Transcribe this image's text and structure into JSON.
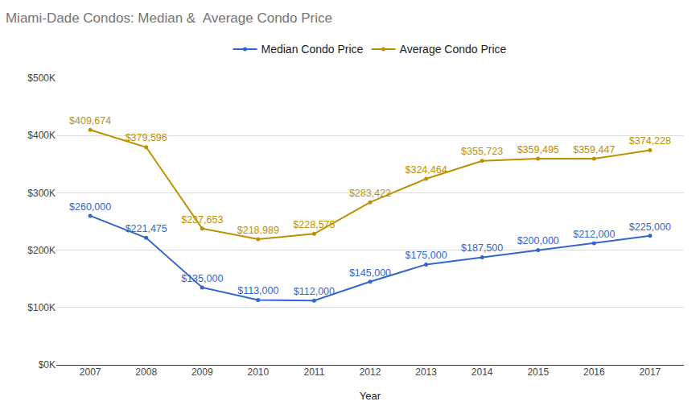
{
  "chart_data": {
    "type": "line",
    "title": "Miami-Dade Condos: Median &  Average Condo Price",
    "x_label": "Year",
    "categories": [
      "2007",
      "2008",
      "2009",
      "2010",
      "2011",
      "2012",
      "2013",
      "2014",
      "2015",
      "2016",
      "2017"
    ],
    "series": [
      {
        "name": "Median Condo Price",
        "color": "#3366cc",
        "marker": "circle",
        "line_style": "solid",
        "values": [
          260000,
          221475,
          135000,
          113000,
          112000,
          145000,
          175000,
          187500,
          200000,
          212000,
          225000
        ],
        "value_labels": [
          "$260,000",
          "$221,475",
          "$135,000",
          "$113,000",
          "$112,000",
          "$145,000",
          "$175,000",
          "$187,500",
          "$200,000",
          "$212,000",
          "$225,000"
        ]
      },
      {
        "name": "Average Condo Price",
        "color": "#bf9000",
        "marker": "circle",
        "line_style": "solid",
        "values": [
          409674,
          379596,
          237653,
          218989,
          228575,
          283422,
          324464,
          355723,
          359495,
          359447,
          374228
        ],
        "value_labels": [
          "$409,674",
          "$379,596",
          "$237,653",
          "$218,989",
          "$228,575",
          "$283,422",
          "$324,464",
          "$355,723",
          "$359,495",
          "$359,447",
          "$374,228"
        ]
      }
    ],
    "ylim": [
      0,
      500000
    ],
    "yticks": [
      {
        "value": 0,
        "label": "$0K"
      },
      {
        "value": 100000,
        "label": "$100K"
      },
      {
        "value": 200000,
        "label": "$200K"
      },
      {
        "value": 300000,
        "label": "$300K"
      },
      {
        "value": 400000,
        "label": "$400K"
      },
      {
        "value": 500000,
        "label": "$500K"
      }
    ],
    "grid": true,
    "legend": "top",
    "data_labels": true
  }
}
